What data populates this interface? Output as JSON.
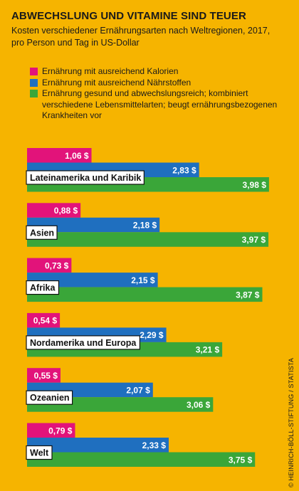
{
  "chart_data": {
    "type": "bar",
    "title": "ABWECHSLUNG UND VITAMINE SIND TEUER",
    "subtitle": "Kosten verschiedener Ernährungsarten nach Weltregionen, 2017, pro Person und Tag in US-Dollar",
    "categories": [
      "Lateinamerika und Karibik",
      "Asien",
      "Afrika",
      "Nordamerika und Europa",
      "Ozeanien",
      "Welt"
    ],
    "series": [
      {
        "name": "Ernährung mit ausreichend Kalorien",
        "color": "#e2137a",
        "values": [
          1.06,
          0.88,
          0.73,
          0.54,
          0.55,
          0.79
        ]
      },
      {
        "name": "Ernährung mit ausreichend Nährstoffen",
        "color": "#1f6fbf",
        "values": [
          2.83,
          2.18,
          2.15,
          2.29,
          2.07,
          2.33
        ]
      },
      {
        "name": "Ernährung gesund und abwechslungsreich; kombiniert verschiedene Lebensmittelarten; beugt ernährungsbezogenen Krankheiten vor",
        "color": "#3aa639",
        "values": [
          3.98,
          3.97,
          3.87,
          3.21,
          3.06,
          3.75
        ]
      }
    ],
    "value_labels": [
      [
        "1,06 $",
        "2,83 $",
        "3,98 $"
      ],
      [
        "0,88 $",
        "2,18 $",
        "3,97 $"
      ],
      [
        "0,73 $",
        "2,15 $",
        "3,87 $"
      ],
      [
        "0,54 $",
        "2,29 $",
        "3,21 $"
      ],
      [
        "0,55 $",
        "2,07 $",
        "3,06 $"
      ],
      [
        "0,79 $",
        "2,33 $",
        "3,75 $"
      ]
    ],
    "orientation": "horizontal",
    "xlim": [
      0,
      4
    ],
    "grid": false,
    "legend_position": "top"
  },
  "credit": "© HEINRICH-BÖLL-STIFTUNG / STATISTA",
  "background_color": "#f6b400"
}
